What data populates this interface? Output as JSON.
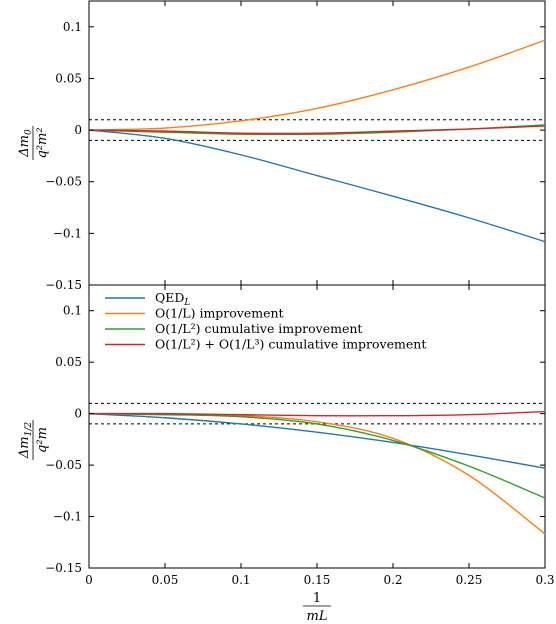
{
  "chart_data": [
    {
      "type": "line",
      "panel": "top",
      "ylabel_num": "Δm",
      "ylabel_num_sub": "0",
      "ylabel_den": "q²m²",
      "xlim": [
        0,
        0.3
      ],
      "ylim": [
        -0.15,
        0.125
      ],
      "yticks": [
        -0.15,
        -0.1,
        -0.05,
        0,
        0.05,
        0.1
      ],
      "ytick_labels": [
        "−0.15",
        "−0.1",
        "−0.05",
        "0",
        "0.05",
        "0.1"
      ],
      "reference_lines": [
        0.01,
        -0.01
      ],
      "x": [
        0,
        0.05,
        0.1,
        0.15,
        0.2,
        0.25,
        0.3
      ],
      "series": [
        {
          "name": "QED_L",
          "color": "#1f77b4",
          "values": [
            0,
            -0.008,
            -0.024,
            -0.044,
            -0.064,
            -0.085,
            -0.108
          ]
        },
        {
          "name": "O(1/L) improvement",
          "color": "#ff7f0e",
          "values": [
            0,
            0.002,
            0.009,
            0.021,
            0.039,
            0.061,
            0.087
          ]
        },
        {
          "name": "O(1/L²) cumulative improvement",
          "color": "#2ca02c",
          "values": [
            0,
            -0.002,
            -0.004,
            -0.004,
            -0.002,
            0.001,
            0.005
          ]
        },
        {
          "name": "O(1/L²) + O(1/L³) cumulative improvement",
          "color": "#d62728",
          "values": [
            0,
            -0.001,
            -0.003,
            -0.003,
            -0.001,
            0.001,
            0.004
          ]
        }
      ]
    },
    {
      "type": "line",
      "panel": "bottom",
      "ylabel_num": "Δm",
      "ylabel_num_sub": "1/2",
      "ylabel_den": "q²m",
      "xlabel_num": "1",
      "xlabel_den": "mL",
      "xlim": [
        0,
        0.3
      ],
      "ylim": [
        -0.15,
        0.125
      ],
      "xticks": [
        0,
        0.05,
        0.1,
        0.15,
        0.2,
        0.25,
        0.3
      ],
      "xtick_labels": [
        "0",
        "0.05",
        "0.1",
        "0.15",
        "0.2",
        "0.25",
        "0.3"
      ],
      "yticks": [
        -0.15,
        -0.1,
        -0.05,
        0,
        0.05,
        0.1
      ],
      "ytick_labels": [
        "−0.15",
        "−0.1",
        "−0.05",
        "0",
        "0.05",
        "0.1"
      ],
      "reference_lines": [
        0.01,
        -0.01
      ],
      "x": [
        0,
        0.05,
        0.1,
        0.15,
        0.2,
        0.25,
        0.3
      ],
      "series": [
        {
          "name": "QED_L",
          "color": "#1f77b4",
          "values": [
            0,
            -0.004,
            -0.01,
            -0.018,
            -0.028,
            -0.04,
            -0.053
          ]
        },
        {
          "name": "O(1/L) improvement",
          "color": "#ff7f0e",
          "values": [
            0,
            -0.001,
            -0.002,
            -0.008,
            -0.024,
            -0.06,
            -0.117
          ]
        },
        {
          "name": "O(1/L²) cumulative improvement",
          "color": "#2ca02c",
          "values": [
            0,
            -0.001,
            -0.003,
            -0.01,
            -0.026,
            -0.051,
            -0.082
          ]
        },
        {
          "name": "O(1/L²) + O(1/L³) cumulative improvement",
          "color": "#d62728",
          "values": [
            0,
            0,
            -0.001,
            -0.002,
            -0.002,
            -0.001,
            0.002
          ]
        }
      ],
      "legend": {
        "placement": "top-left",
        "entries": [
          {
            "label": "QED",
            "sub": "L",
            "color": "#1f77b4"
          },
          {
            "label": "O(1/L) improvement",
            "color": "#ff7f0e"
          },
          {
            "label": "O(1/L²) cumulative improvement",
            "color": "#2ca02c"
          },
          {
            "label": "O(1/L²) + O(1/L³) cumulative improvement",
            "color": "#d62728"
          }
        ]
      }
    }
  ]
}
